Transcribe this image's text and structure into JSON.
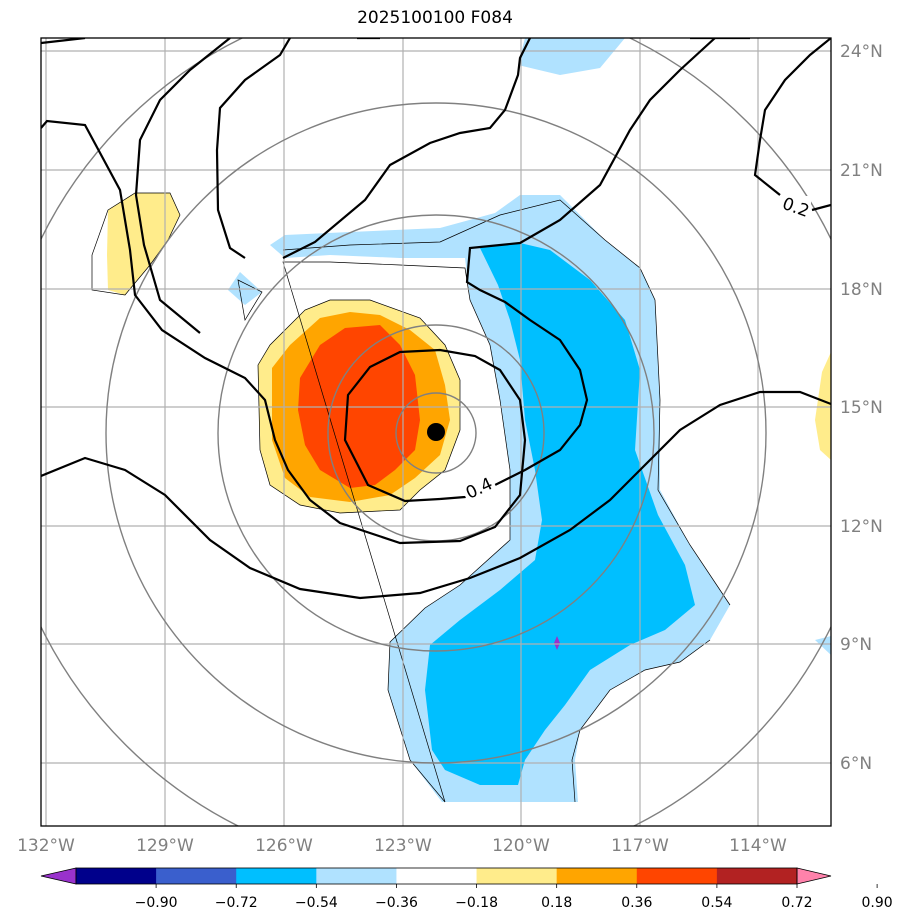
{
  "title": "2025100100 F084",
  "lon_labels": [
    "132°W",
    "129°W",
    "126°W",
    "123°W",
    "120°W",
    "117°W",
    "114°W"
  ],
  "lat_labels": [
    "24°N",
    "21°N",
    "18°N",
    "15°N",
    "12°N",
    "9°N",
    "6°N"
  ],
  "contour_labels": [
    "0.2",
    "0.4"
  ],
  "colorbar": {
    "ticks": [
      "−0.90",
      "−0.72",
      "−0.54",
      "−0.36",
      "−0.18",
      "0.18",
      "0.36",
      "0.54",
      "0.72",
      "0.90"
    ],
    "colors": [
      "#9932cc",
      "#00008b",
      "#3a5fcd",
      "#00bfff",
      "#b0e2ff",
      "#ffffff",
      "#ffec8b",
      "#ffa500",
      "#ff4500",
      "#b22222",
      "#ff82ab"
    ]
  },
  "storm_center": {
    "lon": "122.2°W",
    "lat": "14.3°N"
  }
}
